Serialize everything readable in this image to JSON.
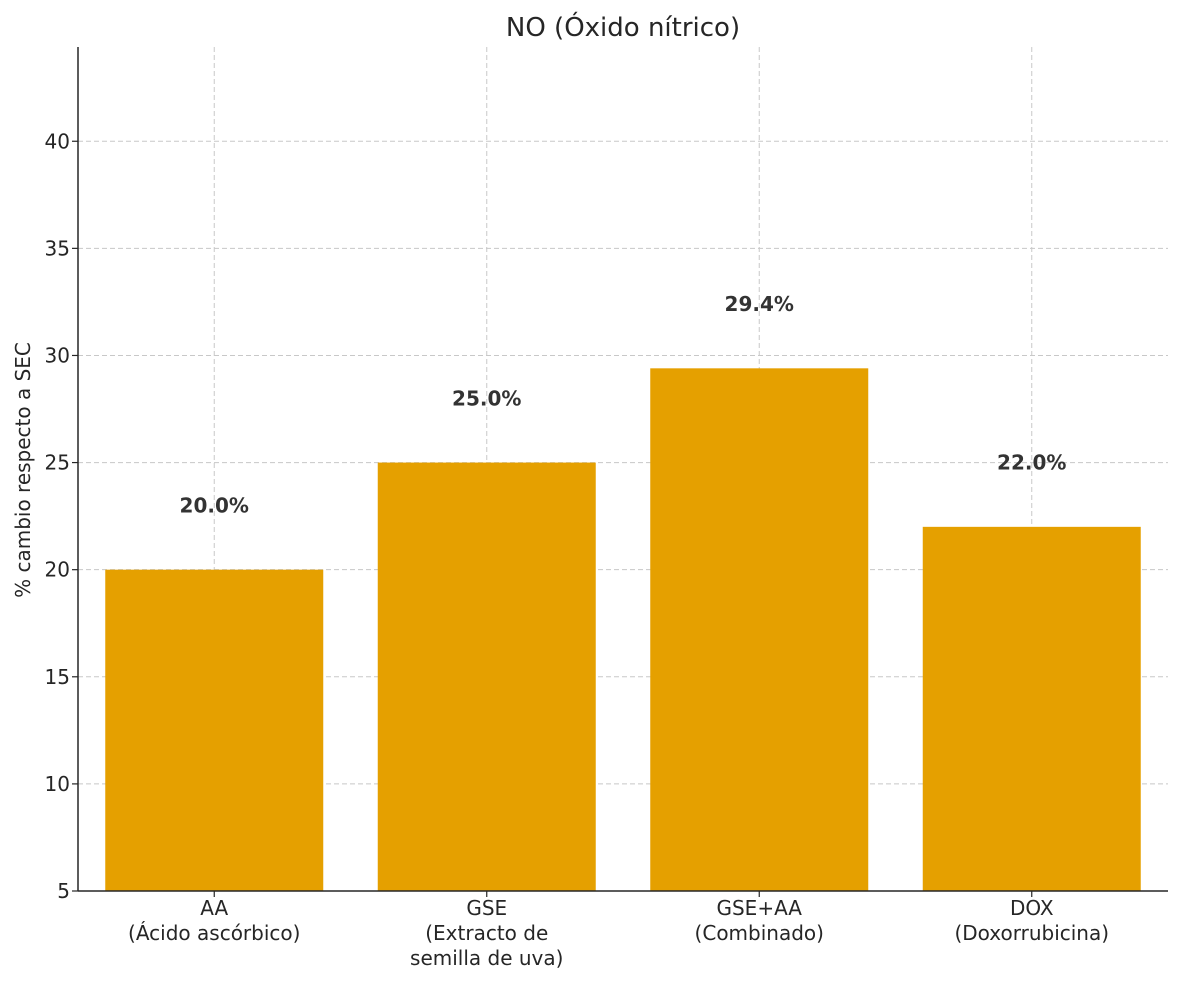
{
  "chart_data": {
    "type": "bar",
    "title": "NO (Óxido nítrico)",
    "ylabel": "% cambio respecto a SEC",
    "xlabel": "",
    "categories": [
      [
        "AA",
        "(Ácido ascórbico)"
      ],
      [
        "GSE",
        "(Extracto de",
        "semilla de uva)"
      ],
      [
        "GSE+AA",
        "(Combinado)"
      ],
      [
        "DOX",
        "(Doxorrubicina)"
      ]
    ],
    "values": [
      20.0,
      25.0,
      29.4,
      22.0
    ],
    "value_labels": [
      "20.0%",
      "25.0%",
      "29.4%",
      "22.0%"
    ],
    "ylim": [
      5,
      44.4
    ],
    "yticks": [
      5,
      10,
      15,
      20,
      25,
      30,
      35,
      40
    ],
    "bar_color": "#E5A000",
    "grid": true
  }
}
